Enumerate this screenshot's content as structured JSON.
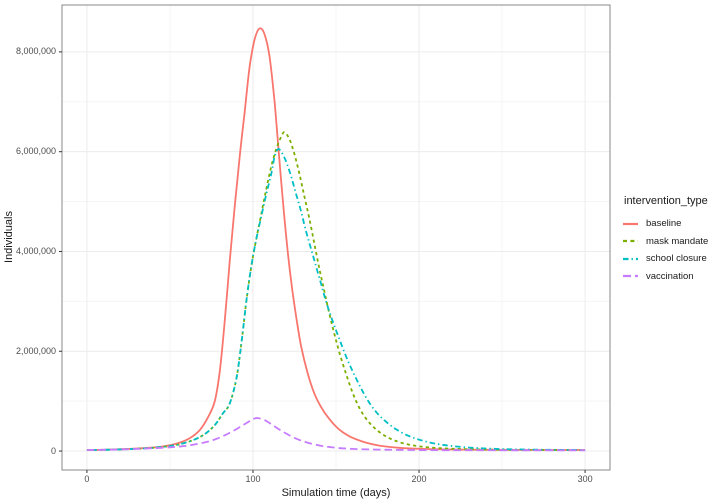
{
  "chart_data": {
    "type": "line",
    "title": "",
    "xlabel": "Simulation time (days)",
    "ylabel": "Individuals",
    "xlim": [
      -15,
      315
    ],
    "ylim": [
      -380000,
      8940000
    ],
    "grid": true,
    "x_ticks": [
      {
        "value": 0,
        "label": "0"
      },
      {
        "value": 100,
        "label": "100"
      },
      {
        "value": 200,
        "label": "200"
      },
      {
        "value": 300,
        "label": "300"
      }
    ],
    "y_ticks": [
      {
        "value": 0,
        "label": "0"
      },
      {
        "value": 2000000,
        "label": "2,000,000"
      },
      {
        "value": 4000000,
        "label": "4,000,000"
      },
      {
        "value": 6000000,
        "label": "6,000,000"
      },
      {
        "value": 8000000,
        "label": "8,000,000"
      }
    ],
    "x_minor": [
      50,
      150,
      250
    ],
    "y_minor": [
      1000000,
      3000000,
      5000000,
      7000000
    ],
    "legend": {
      "title": "intervention_type",
      "position": "right",
      "entries": [
        "baseline",
        "mask mandate",
        "school closure",
        "vaccination"
      ]
    },
    "series": [
      {
        "name": "baseline",
        "color": "#F8766D",
        "linetype": "solid",
        "dash": "",
        "legend_dash": "",
        "points": [
          [
            0,
            20000
          ],
          [
            15,
            30000
          ],
          [
            30,
            50000
          ],
          [
            45,
            90000
          ],
          [
            55,
            160000
          ],
          [
            62,
            260000
          ],
          [
            68,
            420000
          ],
          [
            73,
            680000
          ],
          [
            77,
            1000000
          ],
          [
            80,
            1600000
          ],
          [
            83,
            2600000
          ],
          [
            86,
            3800000
          ],
          [
            89,
            4900000
          ],
          [
            92,
            5900000
          ],
          [
            95,
            6800000
          ],
          [
            98,
            7700000
          ],
          [
            101,
            8250000
          ],
          [
            104,
            8470000
          ],
          [
            107,
            8350000
          ],
          [
            110,
            7900000
          ],
          [
            113,
            7000000
          ],
          [
            115,
            6200000
          ],
          [
            117,
            5400000
          ],
          [
            120,
            4300000
          ],
          [
            123,
            3400000
          ],
          [
            126,
            2700000
          ],
          [
            129,
            2100000
          ],
          [
            133,
            1550000
          ],
          [
            137,
            1150000
          ],
          [
            141,
            880000
          ],
          [
            146,
            640000
          ],
          [
            152,
            430000
          ],
          [
            159,
            280000
          ],
          [
            167,
            180000
          ],
          [
            176,
            110000
          ],
          [
            188,
            65000
          ],
          [
            202,
            42000
          ],
          [
            220,
            30000
          ],
          [
            245,
            24000
          ],
          [
            270,
            21000
          ],
          [
            300,
            20000
          ]
        ]
      },
      {
        "name": "mask mandate",
        "color": "#7CAE00",
        "linetype": "dashed",
        "dash": "3.2 3.2",
        "legend_dash": "4 3.4",
        "points": [
          [
            0,
            20000
          ],
          [
            15,
            28000
          ],
          [
            30,
            45000
          ],
          [
            45,
            80000
          ],
          [
            55,
            130000
          ],
          [
            64,
            220000
          ],
          [
            71,
            340000
          ],
          [
            77,
            520000
          ],
          [
            82,
            760000
          ],
          [
            86,
            950000
          ],
          [
            90,
            1450000
          ],
          [
            93,
            2150000
          ],
          [
            96,
            3000000
          ],
          [
            99,
            3700000
          ],
          [
            102,
            4250000
          ],
          [
            105,
            4750000
          ],
          [
            108,
            5250000
          ],
          [
            111,
            5700000
          ],
          [
            114,
            6050000
          ],
          [
            117,
            6300000
          ],
          [
            119,
            6390000
          ],
          [
            122,
            6250000
          ],
          [
            125,
            5950000
          ],
          [
            128,
            5550000
          ],
          [
            131,
            5100000
          ],
          [
            134,
            4650000
          ],
          [
            137,
            4150000
          ],
          [
            140,
            3650000
          ],
          [
            143,
            3200000
          ],
          [
            146,
            2750000
          ],
          [
            149,
            2350000
          ],
          [
            152,
            1980000
          ],
          [
            156,
            1550000
          ],
          [
            160,
            1170000
          ],
          [
            164,
            870000
          ],
          [
            169,
            610000
          ],
          [
            175,
            410000
          ],
          [
            182,
            260000
          ],
          [
            190,
            160000
          ],
          [
            200,
            95000
          ],
          [
            212,
            58000
          ],
          [
            228,
            38000
          ],
          [
            250,
            26000
          ],
          [
            275,
            20000
          ],
          [
            300,
            18000
          ]
        ]
      },
      {
        "name": "school closure",
        "color": "#00BFC4",
        "linetype": "dotdash",
        "dash": "1.4 3 5.5 3",
        "legend_dash": "5.5 3 1.4 3",
        "points": [
          [
            0,
            20000
          ],
          [
            15,
            28000
          ],
          [
            30,
            45000
          ],
          [
            45,
            80000
          ],
          [
            55,
            130000
          ],
          [
            64,
            220000
          ],
          [
            71,
            340000
          ],
          [
            77,
            520000
          ],
          [
            82,
            760000
          ],
          [
            86,
            950000
          ],
          [
            90,
            1450000
          ],
          [
            93,
            2150000
          ],
          [
            96,
            3000000
          ],
          [
            99,
            3700000
          ],
          [
            102,
            4250000
          ],
          [
            105,
            4700000
          ],
          [
            108,
            5150000
          ],
          [
            111,
            5550000
          ],
          [
            113,
            5900000
          ],
          [
            115,
            6050000
          ],
          [
            117,
            6000000
          ],
          [
            120,
            5800000
          ],
          [
            123,
            5500000
          ],
          [
            126,
            5150000
          ],
          [
            129,
            4800000
          ],
          [
            132,
            4400000
          ],
          [
            135,
            4050000
          ],
          [
            138,
            3700000
          ],
          [
            141,
            3350000
          ],
          [
            144,
            3000000
          ],
          [
            148,
            2600000
          ],
          [
            152,
            2250000
          ],
          [
            156,
            1900000
          ],
          [
            160,
            1600000
          ],
          [
            164,
            1330000
          ],
          [
            168,
            1080000
          ],
          [
            173,
            830000
          ],
          [
            179,
            620000
          ],
          [
            186,
            440000
          ],
          [
            194,
            300000
          ],
          [
            203,
            200000
          ],
          [
            214,
            125000
          ],
          [
            228,
            75000
          ],
          [
            245,
            45000
          ],
          [
            265,
            30000
          ],
          [
            300,
            20000
          ]
        ]
      },
      {
        "name": "vaccination",
        "color": "#C77CFF",
        "linetype": "longdash",
        "dash": "7.5 4",
        "legend_dash": "8 4",
        "points": [
          [
            0,
            20000
          ],
          [
            15,
            28000
          ],
          [
            30,
            42000
          ],
          [
            45,
            65000
          ],
          [
            57,
            95000
          ],
          [
            67,
            145000
          ],
          [
            75,
            210000
          ],
          [
            82,
            300000
          ],
          [
            88,
            400000
          ],
          [
            93,
            500000
          ],
          [
            97,
            580000
          ],
          [
            100,
            640000
          ],
          [
            103,
            660000
          ],
          [
            107,
            620000
          ],
          [
            111,
            540000
          ],
          [
            115,
            450000
          ],
          [
            119,
            370000
          ],
          [
            124,
            280000
          ],
          [
            129,
            210000
          ],
          [
            135,
            150000
          ],
          [
            142,
            100000
          ],
          [
            150,
            65000
          ],
          [
            159,
            45000
          ],
          [
            170,
            32000
          ],
          [
            185,
            24000
          ],
          [
            205,
            19000
          ],
          [
            235,
            16000
          ],
          [
            270,
            15000
          ],
          [
            300,
            15000
          ]
        ]
      }
    ],
    "style": {
      "background": "#ffffff",
      "panel_background": "#ffffff",
      "panel_border": "#898989",
      "grid_major": "#ececec",
      "grid_minor": "#f5f5f5",
      "tick_mark": "#333333",
      "tick_text": "#4d4d4d",
      "title_text": "#1a1a1a"
    }
  }
}
